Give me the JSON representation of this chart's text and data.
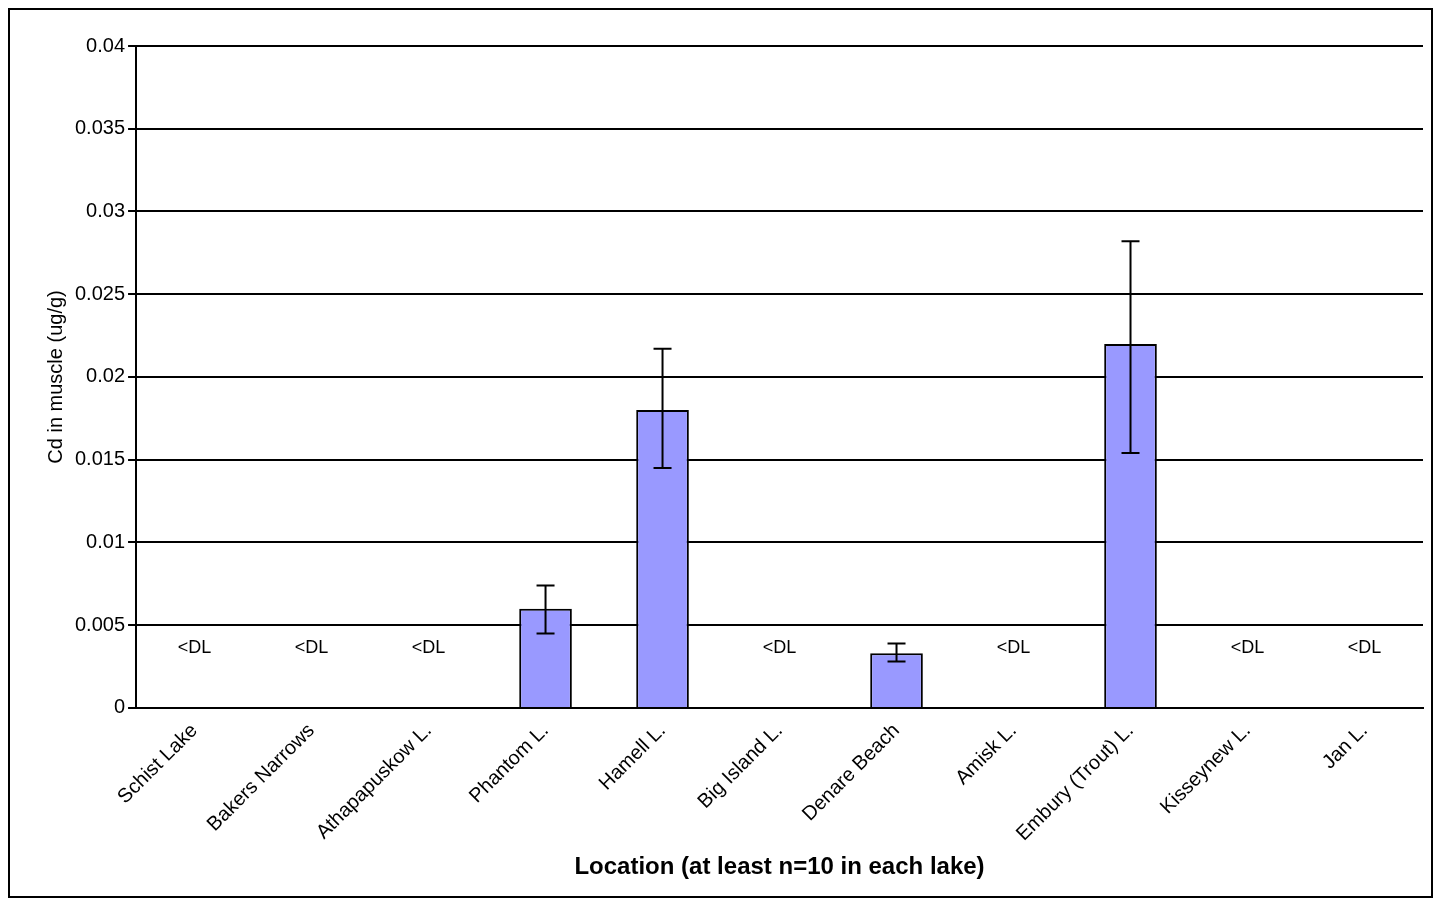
{
  "chart_data": {
    "type": "bar",
    "xlabel": "Location (at least n=10 in each lake)",
    "ylabel": "Cd in muscle (ug/g)",
    "categories": [
      "Schist Lake",
      "Bakers Narrows",
      "Athapapuskow L.",
      "Phantom L.",
      "Hamell L.",
      "Big Island L.",
      "Denare Beach",
      "Amisk L.",
      "Embury (Trout) L.",
      "Kisseynew L.",
      "Jan L."
    ],
    "values": [
      null,
      null,
      null,
      0.006,
      0.018,
      null,
      0.0033,
      null,
      0.022,
      null,
      null
    ],
    "errors": [
      null,
      null,
      null,
      [
        0.0045,
        0.0074
      ],
      [
        0.0145,
        0.0217
      ],
      null,
      [
        0.0028,
        0.0039
      ],
      null,
      [
        0.0154,
        0.0282
      ],
      null,
      null
    ],
    "value_labels": [
      "<DL",
      "<DL",
      "<DL",
      null,
      null,
      "<DL",
      null,
      "<DL",
      null,
      "<DL",
      "<DL"
    ],
    "color": "#9999ff",
    "ylim": [
      0,
      0.04
    ],
    "yticks": [
      0,
      0.005,
      0.01,
      0.015,
      0.02,
      0.025,
      0.03,
      0.035,
      0.04
    ],
    "grid": "y"
  }
}
